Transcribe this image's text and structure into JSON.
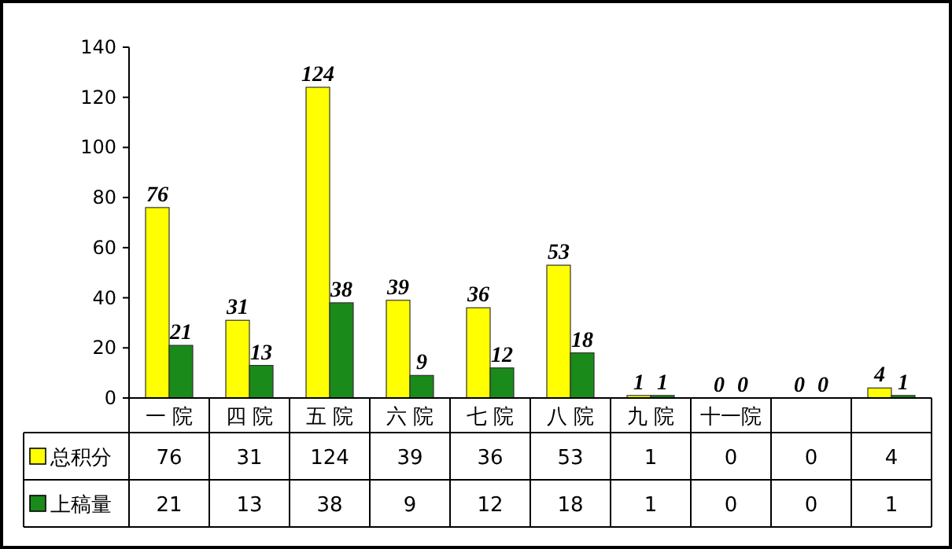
{
  "chart_data": {
    "type": "bar",
    "categories": [
      "一 院",
      "四 院",
      "五 院",
      "六 院",
      "七 院",
      "八 院",
      "九 院",
      "十一院",
      null,
      null
    ],
    "series": [
      {
        "name": "总积分",
        "color": "#ffff00",
        "values": [
          76,
          31,
          124,
          39,
          36,
          53,
          1,
          0,
          0,
          4
        ],
        "value_labels": [
          "76",
          "31",
          "124",
          "39",
          "36",
          "53",
          "1",
          "0",
          "0",
          "4"
        ]
      },
      {
        "name": "上稿量",
        "color": "#1a8a1a",
        "values": [
          21,
          13,
          38,
          9,
          12,
          18,
          1,
          0,
          0,
          1
        ],
        "value_labels": [
          "21",
          "13",
          "38",
          "9",
          "12",
          "18",
          "1",
          "0",
          "0",
          "1"
        ]
      }
    ],
    "ylim": [
      0,
      140
    ],
    "yticks": [
      0,
      20,
      40,
      60,
      80,
      100,
      120,
      140
    ],
    "data_labels": true,
    "annotations": [
      "76",
      "31",
      "124",
      "39",
      "36",
      "53",
      "1",
      "0",
      "0",
      "4",
      "21",
      "13",
      "38",
      "9",
      "12",
      "18",
      "1",
      "0",
      "0",
      "1"
    ],
    "legend": "bottom",
    "grid": false
  }
}
